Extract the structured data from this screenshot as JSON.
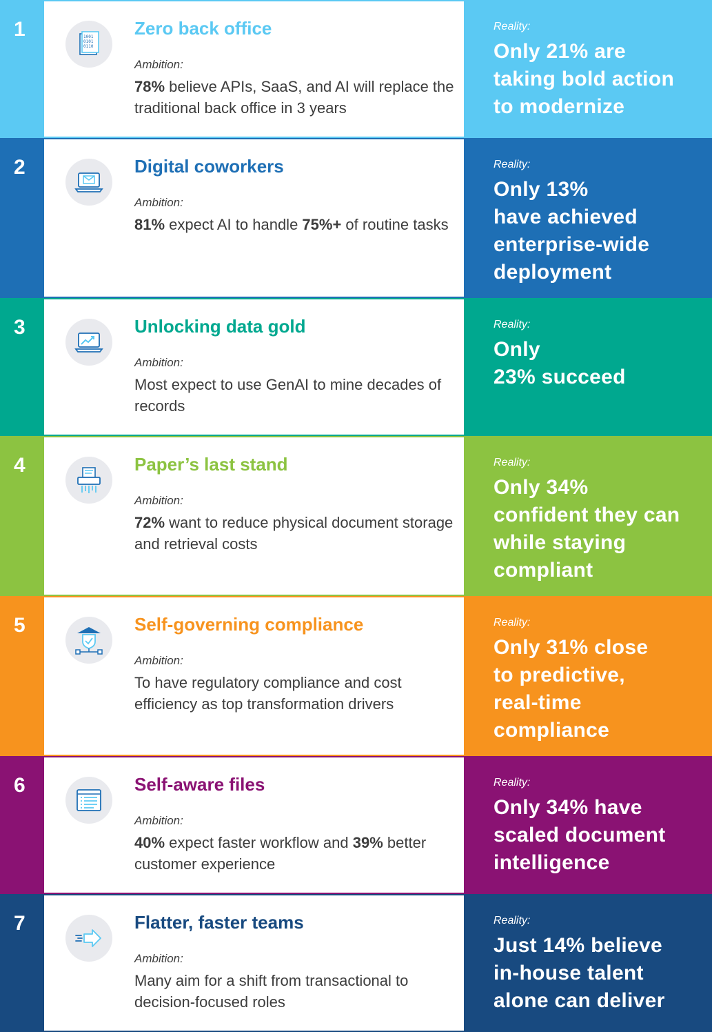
{
  "rows": [
    {
      "number": "1",
      "title": "Zero back office",
      "icon": "binary-document-icon",
      "ambition_label": "Ambition:",
      "ambition_parts": [
        {
          "text": "78%",
          "bold": true
        },
        {
          "text": " believe APIs, SaaS, and AI will replace the traditional back office in 3 years",
          "bold": false
        }
      ],
      "reality_label": "Reality:",
      "reality_lines": [
        "Only 21% are",
        "taking bold action",
        "to modernize"
      ],
      "color": "#5bc9f3",
      "border_color": "#5bc9f3"
    },
    {
      "number": "2",
      "title": "Digital coworkers",
      "icon": "laptop-mail-icon",
      "ambition_label": "Ambition:",
      "ambition_parts": [
        {
          "text": "81%",
          "bold": true
        },
        {
          "text": " expect AI to handle ",
          "bold": false
        },
        {
          "text": "75%+",
          "bold": true
        },
        {
          "text": " of routine tasks",
          "bold": false
        }
      ],
      "reality_label": "Reality:",
      "reality_lines": [
        "Only 13%",
        "have achieved",
        "enterprise-wide",
        "deployment"
      ],
      "color": "#1e6fb5",
      "border_color": "#1e6fb5"
    },
    {
      "number": "3",
      "title": "Unlocking data gold",
      "icon": "laptop-chart-icon",
      "ambition_label": "Ambition:",
      "ambition_parts": [
        {
          "text": "Most expect to use GenAI to mine decades of records",
          "bold": false
        }
      ],
      "reality_label": "Reality:",
      "reality_lines": [
        "Only",
        "23% succeed"
      ],
      "color": "#00a88f",
      "border_color": "#00a88f"
    },
    {
      "number": "4",
      "title": "Paper’s last stand",
      "icon": "shredder-icon",
      "ambition_label": "Ambition:",
      "ambition_parts": [
        {
          "text": "72%",
          "bold": true
        },
        {
          "text": " want to reduce physical document storage and retrieval costs",
          "bold": false
        }
      ],
      "reality_label": "Reality:",
      "reality_lines": [
        "Only 34%",
        "confident they can",
        "while staying",
        "compliant"
      ],
      "color": "#8cc341",
      "border_color": "#8cc341"
    },
    {
      "number": "5",
      "title": "Self-governing compliance",
      "icon": "shield-network-icon",
      "ambition_label": "Ambition:",
      "ambition_parts": [
        {
          "text": "To have regulatory compliance and cost efficiency as top transformation drivers",
          "bold": false
        }
      ],
      "reality_label": "Reality:",
      "reality_lines": [
        "Only 31% close",
        "to predictive,",
        "real-time",
        "compliance"
      ],
      "color": "#f7931e",
      "border_color": "#f7931e"
    },
    {
      "number": "6",
      "title": "Self-aware files",
      "icon": "checklist-window-icon",
      "ambition_label": "Ambition:",
      "ambition_parts": [
        {
          "text": "40%",
          "bold": true
        },
        {
          "text": " expect faster workflow and ",
          "bold": false
        },
        {
          "text": "39%",
          "bold": true
        },
        {
          "text": " better customer experience",
          "bold": false
        }
      ],
      "reality_label": "Reality:",
      "reality_lines": [
        "Only 34% have",
        "scaled document",
        "intelligence"
      ],
      "color": "#8a1273",
      "border_color": "#8a1273"
    },
    {
      "number": "7",
      "title": "Flatter, faster teams",
      "icon": "fast-arrow-icon",
      "ambition_label": "Ambition:",
      "ambition_parts": [
        {
          "text": "Many aim for a shift from transactional to decision-focused roles",
          "bold": false
        }
      ],
      "reality_label": "Reality:",
      "reality_lines": [
        "Just 14% believe",
        "in-house talent",
        "alone can deliver"
      ],
      "color": "#184a80",
      "border_color": "#184a80"
    }
  ]
}
